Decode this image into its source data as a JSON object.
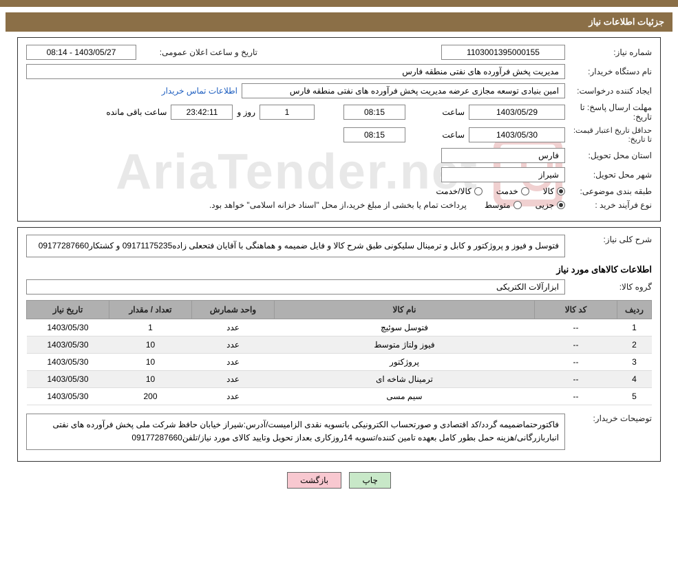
{
  "header": {
    "title": "جزئیات اطلاعات نیاز"
  },
  "watermark": "AriaTender.net",
  "main": {
    "requestNo": {
      "label": "شماره نیاز:",
      "value": "1103001395000155"
    },
    "announceDate": {
      "label": "تاریخ و ساعت اعلان عمومی:",
      "value": "1403/05/27 - 08:14"
    },
    "buyerOrg": {
      "label": "نام دستگاه خریدار:",
      "value": "مدیریت پخش فرآورده های نفتی منطقه فارس"
    },
    "requester": {
      "label": "ایجاد کننده درخواست:",
      "value": "امین بنیادی توسعه مجازی عرضه مدیریت پخش فرآورده های نفتی منطقه فارس"
    },
    "contactLink": "اطلاعات تماس خریدار",
    "responseDeadline": {
      "label": "مهلت ارسال پاسخ: تا تاریخ:",
      "date": "1403/05/29",
      "timeLabel": "ساعت",
      "time": "08:15",
      "daysValue": "1",
      "daysLabel": "روز و",
      "remainTime": "23:42:11",
      "remainLabel": "ساعت باقی مانده"
    },
    "priceDeadline": {
      "label": "حداقل تاریخ اعتبار قیمت: تا تاریخ:",
      "date": "1403/05/30",
      "timeLabel": "ساعت",
      "time": "08:15"
    },
    "province": {
      "label": "استان محل تحویل:",
      "value": "فارس"
    },
    "city": {
      "label": "شهر محل تحویل:",
      "value": "شیراز"
    },
    "category": {
      "label": "طبقه بندی موضوعی:",
      "opt1": "کالا",
      "opt2": "خدمت",
      "opt3": "کالا/خدمت"
    },
    "buyType": {
      "label": "نوع فرآیند خرید :",
      "opt1": "جزیی",
      "opt2": "متوسط",
      "note": "پرداخت تمام یا بخشی از مبلغ خرید،از محل \"اسناد خزانه اسلامی\" خواهد بود."
    }
  },
  "detail": {
    "generalDesc": {
      "label": "شرح کلی نیاز:",
      "value": "فتوسل و فيوز و پروژکتور و کابل و ترمينال سليکونی طبق شرح کالا و فايل ضميمه و هماهنگی با آقايان فتحعلی زاده09171175235 و کشتکار09177287660"
    },
    "itemsTitle": "اطلاعات کالاهای مورد نیاز",
    "itemGroup": {
      "label": "گروه کالا:",
      "value": "ابزارآلات الکتریکی"
    },
    "table": {
      "headers": [
        "ردیف",
        "کد کالا",
        "نام کالا",
        "واحد شمارش",
        "تعداد / مقدار",
        "تاریخ نیاز"
      ],
      "colWidths": [
        "50px",
        "120px",
        "auto",
        "120px",
        "120px",
        "120px"
      ],
      "rows": [
        [
          "1",
          "--",
          "فتوسل سوئیچ",
          "عدد",
          "1",
          "1403/05/30"
        ],
        [
          "2",
          "--",
          "فیوز ولتاژ متوسط",
          "عدد",
          "10",
          "1403/05/30"
        ],
        [
          "3",
          "--",
          "پروژکتور",
          "عدد",
          "10",
          "1403/05/30"
        ],
        [
          "4",
          "--",
          "ترمینال شاخه ای",
          "عدد",
          "10",
          "1403/05/30"
        ],
        [
          "5",
          "--",
          "سیم مسی",
          "عدد",
          "200",
          "1403/05/30"
        ]
      ]
    },
    "buyerNotes": {
      "label": "توضیحات خریدار:",
      "value": "فاکتورحتماضميمه گردد/کد اقتصادی و صورتحساب الکترونيکی باتسويه نقدی الزاميست/آدرس:شيراز خيابان حافظ شرکت ملی پخش فرآورده های نفتی انباربازرگانی/هزينه حمل بطور کامل بعهده تامين کننده/تسويه 14روزکاری بعداز تحويل وتاييد کالای مورد نياز/تلفن09177287660"
    }
  },
  "buttons": {
    "print": "چاپ",
    "back": "بازگشت"
  }
}
